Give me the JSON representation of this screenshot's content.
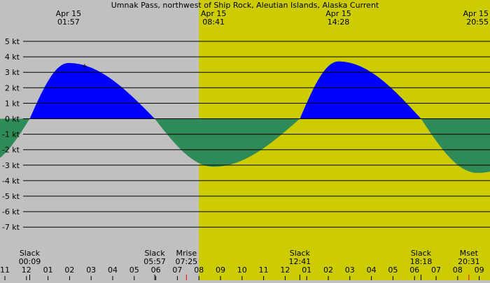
{
  "chart_data": {
    "type": "area",
    "title": "Umnak Pass, northwest of Ship Rock, Aleutian Islands, Alaska Current",
    "y_unit": "kt",
    "ylim": [
      -7.5,
      5.5
    ],
    "x_range_hours": [
      -1,
      23.3
    ],
    "y_tick_labels": [
      "5 kt",
      "4 kt",
      "3 kt",
      "2 kt",
      "1 kt",
      "0 kt",
      "-1 kt",
      "-2 kt",
      "-3 kt",
      "-4 kt",
      "-5 kt",
      "-6 kt",
      "-7 kt"
    ],
    "y_tick_values": [
      5,
      4,
      3,
      2,
      1,
      0,
      -1,
      -2,
      -3,
      -4,
      -5,
      -6,
      -7
    ],
    "x_tick_labels": [
      "11",
      "12",
      "01",
      "02",
      "03",
      "04",
      "05",
      "06",
      "07",
      "08",
      "09",
      "10",
      "11",
      "12",
      "01",
      "02",
      "03",
      "04",
      "05",
      "06",
      "07",
      "08",
      "09"
    ],
    "x_tick_hours": [
      -1,
      0,
      1,
      2,
      3,
      4,
      5,
      6,
      7,
      8,
      9,
      10,
      11,
      12,
      13,
      14,
      15,
      16,
      17,
      18,
      19,
      20,
      21
    ],
    "daylight_hours": [
      8.0,
      23.3
    ],
    "colors": {
      "flood": "#0000ff",
      "ebb": "#2e8b57",
      "night": "#c0c0c0",
      "day": "#cccc00"
    },
    "top_events": [
      {
        "date": "Apr 15",
        "time": "01:57",
        "hour": 1.95,
        "value": 3.6
      },
      {
        "date": "Apr 15",
        "time": "08:41",
        "hour": 8.68,
        "value": -3.1
      },
      {
        "date": "Apr 15",
        "time": "14:28",
        "hour": 14.47,
        "value": 3.7
      },
      {
        "date": "Apr 15",
        "time": "20:55",
        "hour": 20.92,
        "value": -3.5
      }
    ],
    "bottom_events": [
      {
        "label": "Slack",
        "time": "00:09",
        "hour": 0.15
      },
      {
        "label": "Slack",
        "time": "05:57",
        "hour": 5.95
      },
      {
        "label": "Mrise",
        "time": "07:25",
        "hour": 7.42
      },
      {
        "label": "Slack",
        "time": "12:41",
        "hour": 12.68
      },
      {
        "label": "Slack",
        "time": "18:18",
        "hour": 18.3
      },
      {
        "label": "Mset",
        "time": "20:31",
        "hour": 20.52
      }
    ],
    "current_marker_hour": 2.7,
    "current_marker_value": 3.4
  }
}
